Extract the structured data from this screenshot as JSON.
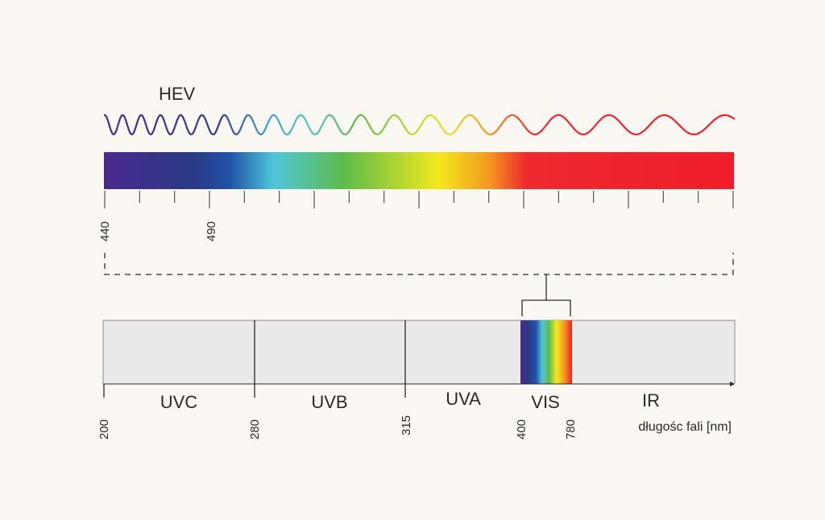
{
  "hev": {
    "label": "HEV",
    "spectrum_colors": [
      "#4a2a8f",
      "#2a3a86",
      "#2052a8",
      "#4fc7d8",
      "#5dbb4a",
      "#c6dc2a",
      "#f4e81e",
      "#f39a1e",
      "#ee2a2f",
      "#ee1d2b"
    ],
    "tick_labels": [
      "440",
      "490"
    ]
  },
  "spectrum": {
    "regions": [
      {
        "name": "UVC",
        "start": "200"
      },
      {
        "name": "UVB",
        "start": "280"
      },
      {
        "name": "UVA",
        "start": "315"
      },
      {
        "name": "VIS",
        "start": "400"
      },
      {
        "name": "IR",
        "start": "780"
      }
    ],
    "axis_label": "długośc fali [nm]",
    "band_fill": "#e9e9e9",
    "vis_colors": [
      "#4a2a8f",
      "#2a3a86",
      "#2052a8",
      "#4fc7d8",
      "#5dbb4a",
      "#f4e81e",
      "#f39a1e",
      "#ee1d2b"
    ]
  }
}
